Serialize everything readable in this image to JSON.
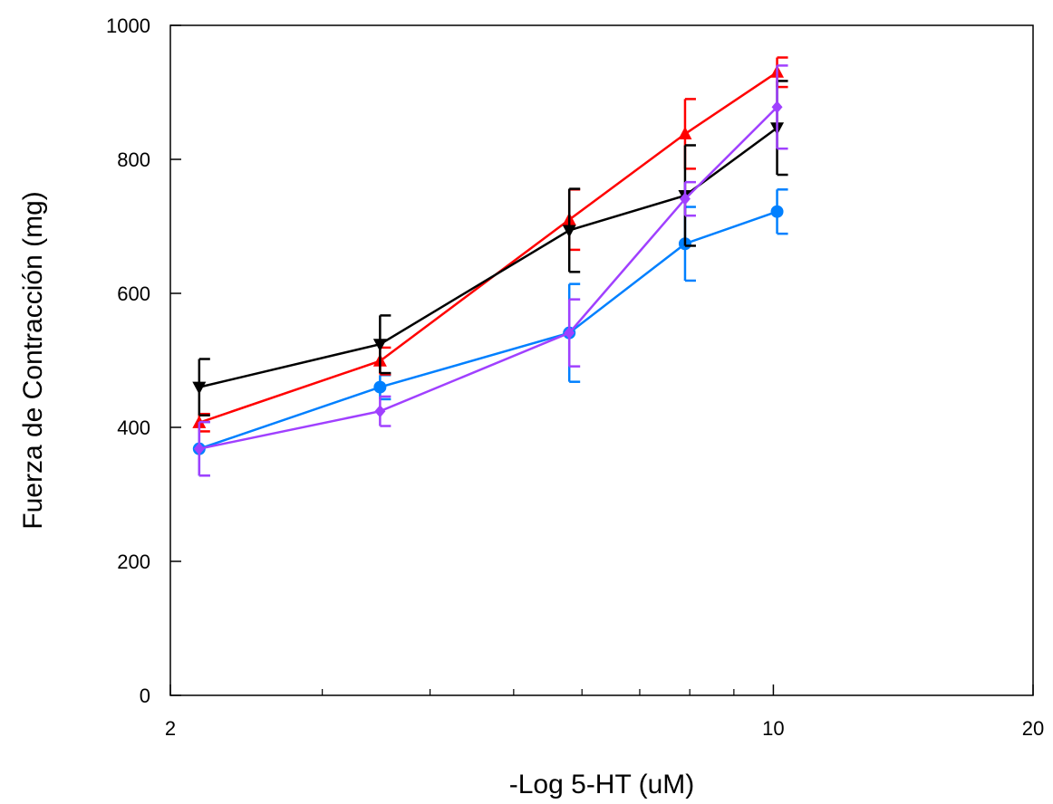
{
  "chart_data": {
    "type": "line",
    "title": "",
    "xlabel": "-Log 5-HT (uM)",
    "ylabel": "Fuerza de Contracción (mg)",
    "xscale": "log",
    "xlim": [
      2,
      20
    ],
    "ylim": [
      0,
      1000
    ],
    "x_major_ticks": [
      2,
      10,
      20
    ],
    "x_minor_ticks": [
      3,
      4,
      5,
      6,
      7,
      8,
      9
    ],
    "x_tick_labels": [
      "2",
      "10",
      "20"
    ],
    "y_ticks": [
      0,
      200,
      400,
      600,
      800,
      1000
    ],
    "y_tick_labels": [
      "0",
      "200",
      "400",
      "600",
      "800",
      "1000"
    ],
    "grid": false,
    "legend": "none",
    "series": [
      {
        "color": "#0080ff",
        "marker": "circle",
        "x": [
          2.16,
          3.5,
          5.8,
          7.9,
          10.1
        ],
        "y": [
          368,
          460,
          541,
          674,
          722
        ],
        "err": [
          40,
          18,
          73,
          55,
          33
        ]
      },
      {
        "color": "#ff0000",
        "marker": "triangle-up",
        "x": [
          2.16,
          3.5,
          5.8,
          7.9,
          10.1
        ],
        "y": [
          407,
          499,
          710,
          838,
          930
        ],
        "err": [
          13,
          20,
          45,
          52,
          22
        ]
      },
      {
        "color": "#000000",
        "marker": "triangle-down",
        "x": [
          2.16,
          3.5,
          5.8,
          7.9,
          10.1
        ],
        "y": [
          460,
          524,
          694,
          746,
          847
        ],
        "err": [
          42,
          43,
          62,
          75,
          70
        ]
      },
      {
        "color": "#a040ff",
        "marker": "diamond",
        "x": [
          2.16,
          3.5,
          5.8,
          7.9,
          10.1
        ],
        "y": [
          368,
          424,
          541,
          741,
          878
        ],
        "err": [
          40,
          22,
          50,
          25,
          62
        ]
      }
    ]
  }
}
